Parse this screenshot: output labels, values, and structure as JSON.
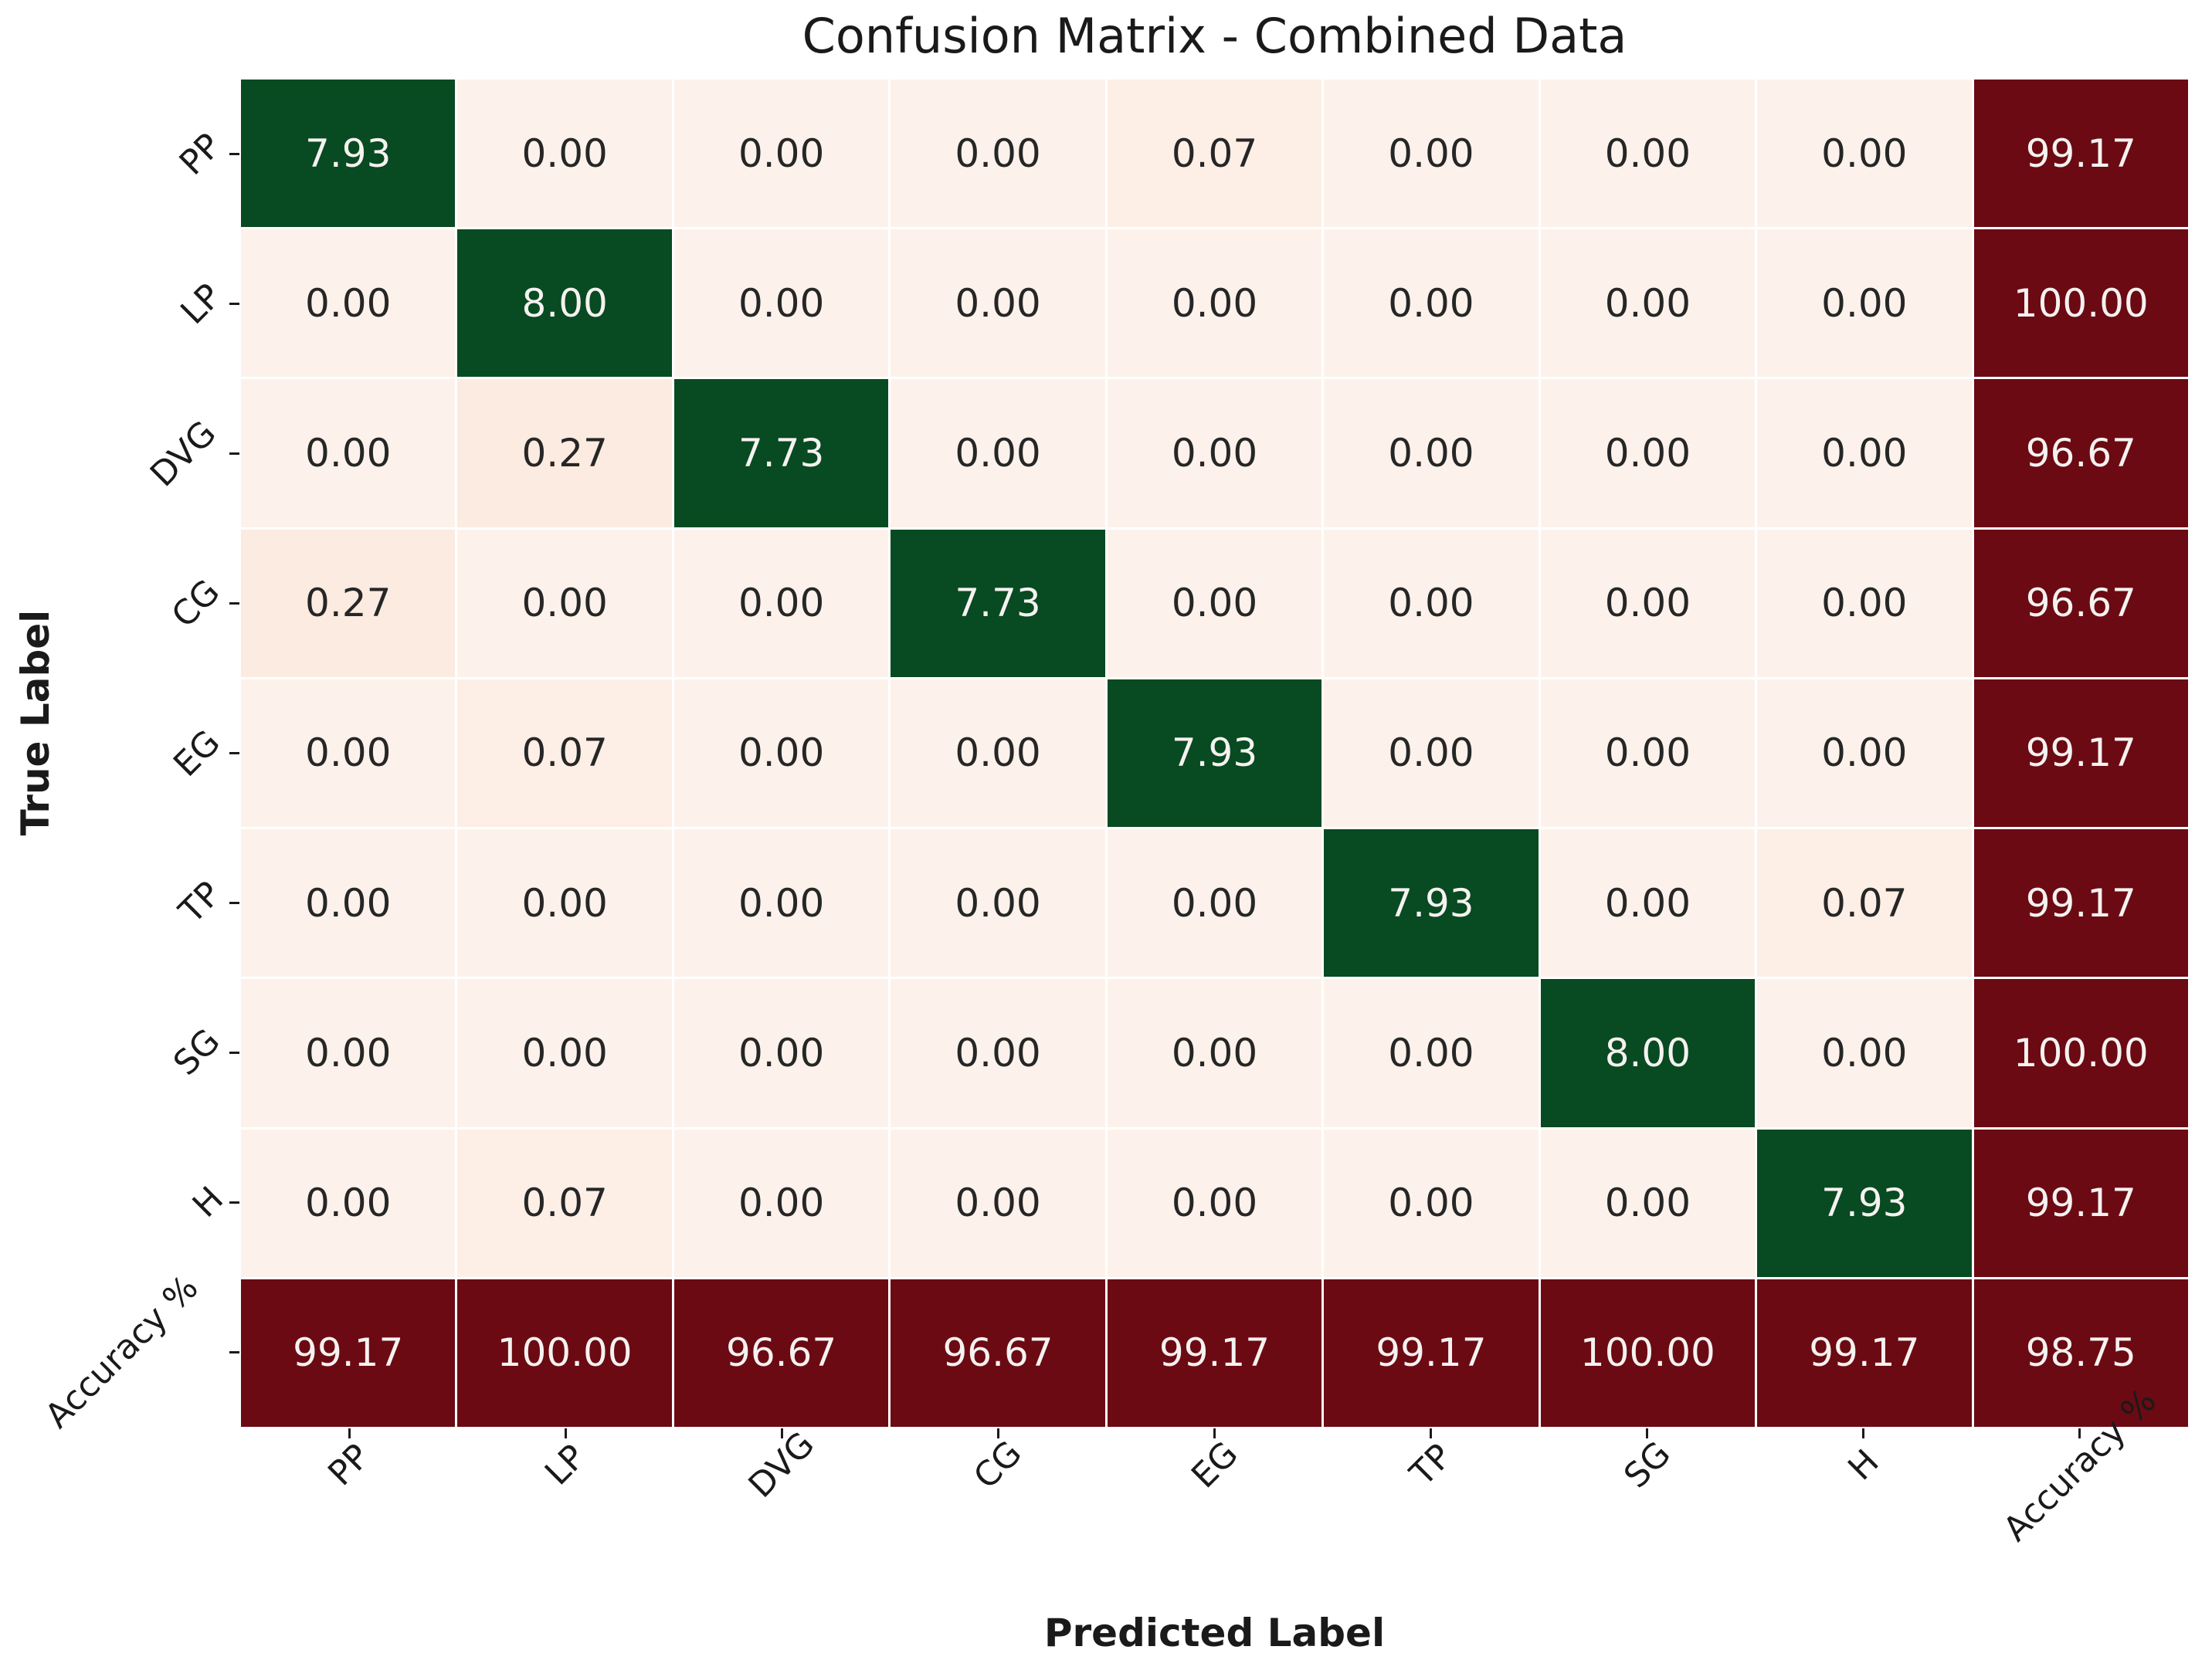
{
  "chart_data": {
    "type": "heatmap",
    "title": "Confusion Matrix - Combined Data",
    "xlabel": "Predicted Label",
    "ylabel": "True Label",
    "x_tick_labels": [
      "PP",
      "LP",
      "DVG",
      "CG",
      "EG",
      "TP",
      "SG",
      "H",
      "Accuracy %"
    ],
    "y_tick_labels": [
      "PP",
      "LP",
      "DVG",
      "CG",
      "EG",
      "TP",
      "SG",
      "H",
      "Accuracy %"
    ],
    "matrix": [
      [
        7.93,
        0.0,
        0.0,
        0.0,
        0.07,
        0.0,
        0.0,
        0.0,
        99.17
      ],
      [
        0.0,
        8.0,
        0.0,
        0.0,
        0.0,
        0.0,
        0.0,
        0.0,
        100.0
      ],
      [
        0.0,
        0.27,
        7.73,
        0.0,
        0.0,
        0.0,
        0.0,
        0.0,
        96.67
      ],
      [
        0.27,
        0.0,
        0.0,
        7.73,
        0.0,
        0.0,
        0.0,
        0.0,
        96.67
      ],
      [
        0.0,
        0.07,
        0.0,
        0.0,
        7.93,
        0.0,
        0.0,
        0.0,
        99.17
      ],
      [
        0.0,
        0.0,
        0.0,
        0.0,
        0.0,
        7.93,
        0.0,
        0.07,
        99.17
      ],
      [
        0.0,
        0.0,
        0.0,
        0.0,
        0.0,
        0.0,
        8.0,
        0.0,
        100.0
      ],
      [
        0.0,
        0.07,
        0.0,
        0.0,
        0.0,
        0.0,
        0.0,
        7.93,
        99.17
      ],
      [
        99.17,
        100.0,
        96.67,
        96.67,
        99.17,
        99.17,
        100.0,
        99.17,
        98.75
      ]
    ],
    "value_format": "two_decimals",
    "overall_accuracy": 98.75,
    "legend": "none",
    "grid": "white cell separators",
    "colors": {
      "diagonal_green": "#084a21",
      "accuracy_maroon": "#6b0a13",
      "offdiag_zero": "#fdf2eb",
      "offdiag_low": "#fdefe6",
      "offdiag_mid": "#fcebe0",
      "gridline": "#ffffff",
      "cell_text_dark": "#262626",
      "cell_text_light": "#f5f2f0"
    }
  }
}
